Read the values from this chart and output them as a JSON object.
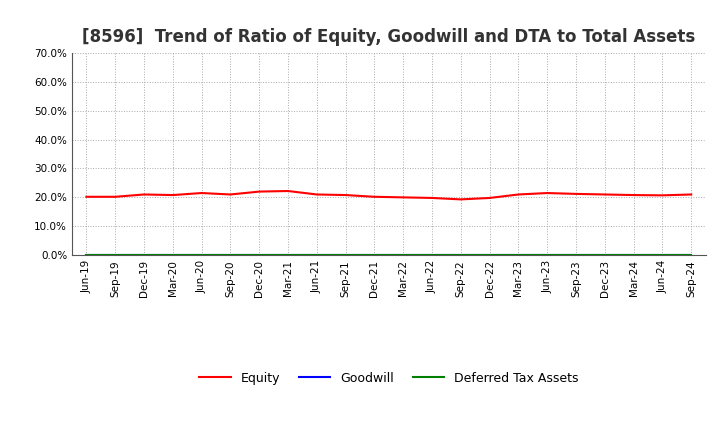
{
  "title": "[8596]  Trend of Ratio of Equity, Goodwill and DTA to Total Assets",
  "x_labels": [
    "Jun-19",
    "Sep-19",
    "Dec-19",
    "Mar-20",
    "Jun-20",
    "Sep-20",
    "Dec-20",
    "Mar-21",
    "Jun-21",
    "Sep-21",
    "Dec-21",
    "Mar-22",
    "Jun-22",
    "Sep-22",
    "Dec-22",
    "Mar-23",
    "Jun-23",
    "Sep-23",
    "Dec-23",
    "Mar-24",
    "Jun-24",
    "Sep-24"
  ],
  "equity": [
    0.202,
    0.202,
    0.21,
    0.208,
    0.215,
    0.21,
    0.22,
    0.222,
    0.21,
    0.208,
    0.202,
    0.2,
    0.198,
    0.193,
    0.198,
    0.21,
    0.215,
    0.212,
    0.21,
    0.208,
    0.207,
    0.21
  ],
  "goodwill": [
    0.0,
    0.0,
    0.0,
    0.0,
    0.0,
    0.0,
    0.0,
    0.0,
    0.0,
    0.0,
    0.0,
    0.0,
    0.0,
    0.0,
    0.0,
    0.0,
    0.0,
    0.0,
    0.0,
    0.0,
    0.0,
    0.0
  ],
  "dta": [
    0.0,
    0.0,
    0.0,
    0.0,
    0.0,
    0.0,
    0.0,
    0.0,
    0.0,
    0.0,
    0.0,
    0.0,
    0.0,
    0.0,
    0.0,
    0.0,
    0.0,
    0.0,
    0.0,
    0.0,
    0.0,
    0.0
  ],
  "equity_color": "#ff0000",
  "goodwill_color": "#0000ff",
  "dta_color": "#008000",
  "ylim": [
    0.0,
    0.7
  ],
  "yticks": [
    0.0,
    0.1,
    0.2,
    0.3,
    0.4,
    0.5,
    0.6,
    0.7
  ],
  "background_color": "#ffffff",
  "plot_bg_color": "#ffffff",
  "grid_color": "#aaaaaa",
  "title_fontsize": 12,
  "legend_labels": [
    "Equity",
    "Goodwill",
    "Deferred Tax Assets"
  ]
}
